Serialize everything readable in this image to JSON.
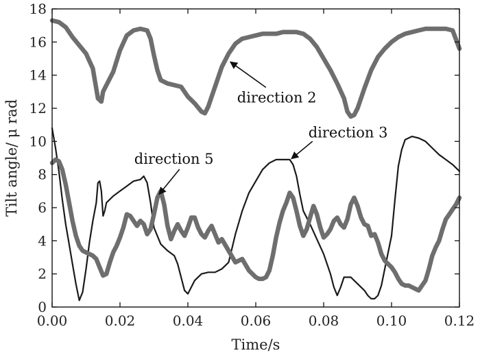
{
  "chart_data": {
    "type": "line",
    "title": "",
    "xlabel": "Time/s",
    "ylabel": "Tilt angle/ μ rad",
    "xlim": [
      0.0,
      0.12
    ],
    "ylim": [
      0,
      18
    ],
    "x_ticks": [
      0.0,
      0.02,
      0.04,
      0.06,
      0.08,
      0.1,
      0.12
    ],
    "x_tick_labels": [
      "0.00",
      "0.02",
      "0.04",
      "0.06",
      "0.08",
      "0.10",
      "0.12"
    ],
    "y_ticks": [
      0,
      2,
      4,
      6,
      8,
      10,
      12,
      14,
      16,
      18
    ],
    "y_tick_labels": [
      "0",
      "2",
      "4",
      "6",
      "8",
      "10",
      "12",
      "14",
      "16",
      "18"
    ],
    "grid": false,
    "legend": "none",
    "series": [
      {
        "name": "direction 2",
        "color": "#6e6e6e",
        "style": "thick",
        "x": [
          0.0,
          0.002,
          0.004,
          0.006,
          0.008,
          0.01,
          0.012,
          0.0135,
          0.0145,
          0.015,
          0.016,
          0.018,
          0.02,
          0.022,
          0.024,
          0.026,
          0.028,
          0.029,
          0.03,
          0.031,
          0.032,
          0.034,
          0.036,
          0.038,
          0.04,
          0.042,
          0.044,
          0.045,
          0.046,
          0.048,
          0.05,
          0.052,
          0.054,
          0.056,
          0.058,
          0.06,
          0.062,
          0.064,
          0.066,
          0.068,
          0.07,
          0.072,
          0.074,
          0.076,
          0.078,
          0.08,
          0.082,
          0.084,
          0.086,
          0.087,
          0.088,
          0.089,
          0.09,
          0.092,
          0.094,
          0.096,
          0.098,
          0.1,
          0.102,
          0.104,
          0.106,
          0.108,
          0.11,
          0.112,
          0.114,
          0.116,
          0.118,
          0.12
        ],
        "y": [
          17.3,
          17.2,
          16.9,
          16.3,
          15.8,
          15.3,
          14.4,
          12.6,
          12.4,
          13.0,
          13.4,
          14.2,
          15.5,
          16.4,
          16.7,
          16.8,
          16.7,
          16.2,
          15.2,
          14.3,
          13.7,
          13.5,
          13.4,
          13.3,
          12.7,
          12.3,
          11.8,
          11.7,
          12.1,
          13.3,
          14.5,
          15.3,
          15.9,
          16.2,
          16.3,
          16.4,
          16.5,
          16.5,
          16.5,
          16.6,
          16.6,
          16.6,
          16.5,
          16.2,
          15.7,
          15.0,
          14.3,
          13.5,
          12.6,
          11.8,
          11.5,
          11.6,
          12.0,
          13.2,
          14.3,
          15.1,
          15.6,
          16.0,
          16.3,
          16.5,
          16.6,
          16.7,
          16.8,
          16.8,
          16.8,
          16.8,
          16.7,
          15.6
        ]
      },
      {
        "name": "direction 3",
        "color": "#1a1a1a",
        "style": "thin",
        "x": [
          0.0,
          0.001,
          0.002,
          0.003,
          0.004,
          0.005,
          0.006,
          0.007,
          0.008,
          0.009,
          0.01,
          0.011,
          0.012,
          0.013,
          0.0135,
          0.014,
          0.0145,
          0.015,
          0.0155,
          0.016,
          0.018,
          0.02,
          0.022,
          0.024,
          0.026,
          0.027,
          0.028,
          0.029,
          0.03,
          0.032,
          0.034,
          0.036,
          0.037,
          0.038,
          0.039,
          0.04,
          0.042,
          0.044,
          0.046,
          0.048,
          0.05,
          0.052,
          0.054,
          0.056,
          0.058,
          0.06,
          0.062,
          0.064,
          0.066,
          0.068,
          0.07,
          0.071,
          0.072,
          0.073,
          0.074,
          0.076,
          0.078,
          0.08,
          0.082,
          0.083,
          0.084,
          0.085,
          0.086,
          0.088,
          0.09,
          0.092,
          0.093,
          0.094,
          0.095,
          0.096,
          0.097,
          0.098,
          0.1,
          0.101,
          0.102,
          0.103,
          0.104,
          0.106,
          0.108,
          0.11,
          0.112,
          0.114,
          0.116,
          0.118,
          0.12
        ],
        "y": [
          10.8,
          9.6,
          8.2,
          6.5,
          5.0,
          3.8,
          2.6,
          1.4,
          0.4,
          0.9,
          2.3,
          3.9,
          5.2,
          6.3,
          7.5,
          7.6,
          7.0,
          5.5,
          5.8,
          6.3,
          6.7,
          7.0,
          7.3,
          7.6,
          7.7,
          7.9,
          7.5,
          6.3,
          4.8,
          3.8,
          3.4,
          3.1,
          2.6,
          1.8,
          1.0,
          0.8,
          1.6,
          2.0,
          2.1,
          2.1,
          2.3,
          2.7,
          4.4,
          5.8,
          6.9,
          7.6,
          8.3,
          8.7,
          8.9,
          8.9,
          8.9,
          8.6,
          7.9,
          6.8,
          5.8,
          5.0,
          4.1,
          3.2,
          2.0,
          1.2,
          0.7,
          1.2,
          1.8,
          1.8,
          1.4,
          1.0,
          0.7,
          0.5,
          0.5,
          0.7,
          1.3,
          2.3,
          4.3,
          6.5,
          8.5,
          9.5,
          10.1,
          10.3,
          10.2,
          10.0,
          9.6,
          9.2,
          8.9,
          8.6,
          8.2
        ]
      },
      {
        "name": "direction 5",
        "color": "#6e6e6e",
        "style": "thick",
        "x": [
          0.0,
          0.001,
          0.002,
          0.003,
          0.004,
          0.005,
          0.006,
          0.007,
          0.008,
          0.009,
          0.01,
          0.011,
          0.012,
          0.013,
          0.014,
          0.015,
          0.016,
          0.017,
          0.018,
          0.019,
          0.02,
          0.021,
          0.022,
          0.023,
          0.024,
          0.025,
          0.026,
          0.027,
          0.028,
          0.029,
          0.03,
          0.031,
          0.032,
          0.033,
          0.034,
          0.035,
          0.036,
          0.037,
          0.038,
          0.039,
          0.04,
          0.041,
          0.042,
          0.043,
          0.044,
          0.045,
          0.046,
          0.047,
          0.048,
          0.049,
          0.05,
          0.052,
          0.054,
          0.056,
          0.058,
          0.06,
          0.061,
          0.062,
          0.063,
          0.064,
          0.065,
          0.066,
          0.067,
          0.068,
          0.069,
          0.07,
          0.071,
          0.072,
          0.073,
          0.074,
          0.075,
          0.076,
          0.077,
          0.078,
          0.079,
          0.08,
          0.081,
          0.082,
          0.083,
          0.084,
          0.085,
          0.086,
          0.087,
          0.088,
          0.089,
          0.09,
          0.091,
          0.092,
          0.093,
          0.094,
          0.095,
          0.096,
          0.097,
          0.098,
          0.099,
          0.1,
          0.101,
          0.102,
          0.103,
          0.104,
          0.105,
          0.106,
          0.107,
          0.108,
          0.109,
          0.11,
          0.111,
          0.112,
          0.113,
          0.114,
          0.115,
          0.116,
          0.117,
          0.118,
          0.119,
          0.12
        ],
        "y": [
          8.7,
          8.9,
          8.8,
          8.3,
          7.4,
          6.3,
          5.2,
          4.3,
          3.7,
          3.4,
          3.3,
          3.2,
          3.1,
          2.9,
          2.4,
          1.9,
          2.0,
          2.7,
          3.3,
          3.7,
          4.2,
          4.8,
          5.6,
          5.5,
          5.2,
          4.9,
          5.2,
          5.0,
          4.4,
          4.7,
          5.6,
          6.6,
          7.0,
          6.2,
          4.9,
          4.1,
          4.6,
          5.0,
          4.6,
          4.3,
          4.8,
          5.4,
          5.4,
          4.8,
          4.4,
          4.2,
          4.6,
          4.9,
          4.4,
          3.9,
          4.1,
          3.4,
          2.7,
          2.9,
          2.2,
          1.8,
          1.7,
          1.7,
          1.8,
          2.2,
          3.1,
          4.2,
          5.1,
          5.8,
          6.3,
          6.9,
          6.6,
          5.8,
          4.9,
          4.3,
          4.7,
          5.4,
          6.1,
          5.6,
          4.8,
          4.2,
          4.4,
          4.7,
          5.2,
          5.4,
          5.0,
          4.8,
          5.3,
          6.2,
          6.6,
          6.1,
          5.4,
          5.0,
          4.9,
          4.3,
          4.4,
          3.9,
          3.2,
          2.8,
          2.6,
          2.4,
          2.1,
          1.7,
          1.4,
          1.3,
          1.3,
          1.2,
          1.1,
          1.0,
          1.3,
          1.6,
          2.3,
          3.1,
          3.6,
          4.0,
          4.7,
          5.3,
          5.6,
          5.9,
          6.2,
          6.6
        ]
      }
    ],
    "annotations": [
      {
        "text": "direction 2",
        "target_x": 0.0525,
        "target_y": 14.8,
        "label_x": 0.0545,
        "label_y": 12.35
      },
      {
        "text": "direction 3",
        "target_x": 0.0705,
        "target_y": 8.95,
        "label_x": 0.0755,
        "label_y": 10.25
      },
      {
        "text": "direction 5",
        "target_x": 0.0315,
        "target_y": 6.8,
        "label_x": 0.0242,
        "label_y": 8.65
      }
    ]
  }
}
